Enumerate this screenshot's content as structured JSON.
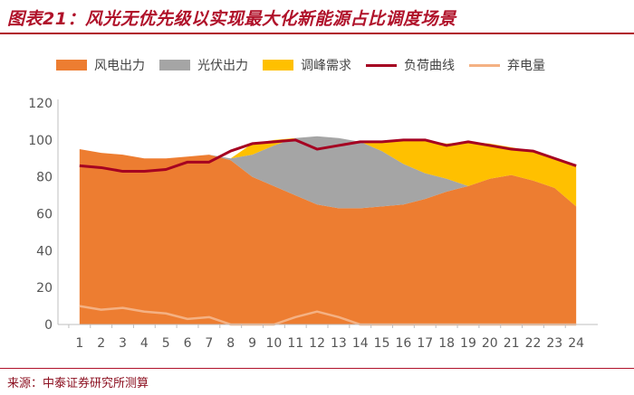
{
  "title": "图表21：风光无优先级以实现最大化新能源占比调度场景",
  "source": "来源：中泰证券研究所测算",
  "chart_data": {
    "type": "area",
    "categories": [
      "1",
      "2",
      "3",
      "4",
      "5",
      "6",
      "7",
      "8",
      "9",
      "10",
      "11",
      "12",
      "13",
      "14",
      "15",
      "16",
      "17",
      "18",
      "19",
      "20",
      "21",
      "22",
      "23",
      "24"
    ],
    "ylim": [
      0,
      120
    ],
    "yticks": [
      0,
      20,
      40,
      60,
      80,
      100,
      120
    ],
    "grid": false,
    "legend_position": "top",
    "series": [
      {
        "name": "风电出力",
        "kind": "area",
        "color": "#ed7d31",
        "values": [
          95,
          93,
          92,
          90,
          90,
          91,
          92,
          89,
          80,
          75,
          70,
          65,
          63,
          63,
          64,
          65,
          68,
          72,
          75,
          79,
          81,
          78,
          74,
          64
        ]
      },
      {
        "name": "光伏出力",
        "kind": "area",
        "color": "#a5a5a5",
        "values": [
          0,
          0,
          0,
          0,
          0,
          0,
          0,
          1,
          12,
          22,
          31,
          37,
          38,
          36,
          30,
          22,
          14,
          7,
          0,
          0,
          0,
          0,
          0,
          0
        ]
      },
      {
        "name": "调峰需求",
        "kind": "area",
        "color": "#ffc000",
        "values": [
          0,
          0,
          0,
          0,
          0,
          0,
          0,
          0,
          6,
          3,
          0,
          0,
          0,
          0,
          5,
          13,
          18,
          19,
          24,
          19,
          15,
          16,
          16,
          22
        ]
      },
      {
        "name": "负荷曲线",
        "kind": "line",
        "color": "#a50021",
        "values": [
          86,
          85,
          83,
          83,
          84,
          88,
          88,
          94,
          98,
          99,
          100,
          95,
          97,
          99,
          99,
          100,
          100,
          97,
          99,
          97,
          95,
          94,
          90,
          86
        ]
      },
      {
        "name": "弃电量",
        "kind": "line",
        "color": "#f4b183",
        "values": [
          10,
          8,
          9,
          7,
          6,
          3,
          4,
          0,
          0,
          0,
          4,
          7,
          4,
          0,
          0,
          0,
          0,
          0,
          0,
          0,
          0,
          0,
          0,
          0
        ]
      }
    ]
  }
}
